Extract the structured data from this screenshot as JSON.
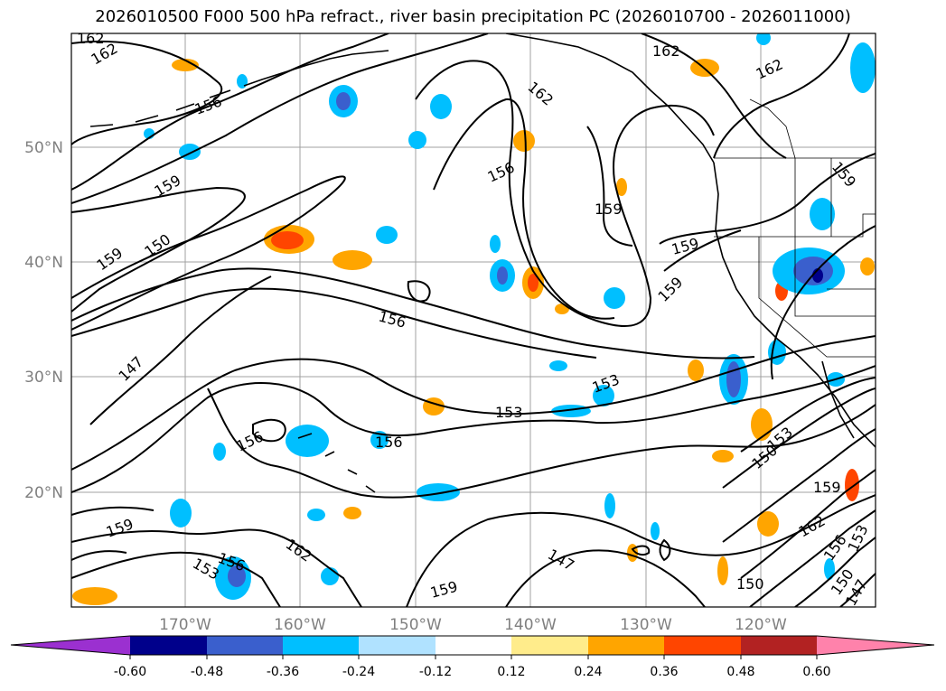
{
  "title": "2026010500 F000 500 hPa refract., river basin precipitation PC (2026010700 - 2026011000)",
  "map": {
    "lat_labels": [
      "50°N",
      "40°N",
      "30°N",
      "20°N"
    ],
    "lon_labels": [
      "170°W",
      "160°W",
      "150°W",
      "140°W",
      "130°W",
      "120°W"
    ],
    "contour_labels": [
      "162",
      "162",
      "156",
      "159",
      "159",
      "150",
      "147",
      "156",
      "156",
      "153",
      "153",
      "156",
      "156",
      "162",
      "159",
      "159",
      "162",
      "162",
      "159",
      "159",
      "150",
      "153",
      "162",
      "156",
      "153",
      "150",
      "147",
      "150",
      "147",
      "153",
      "156",
      "162",
      "159"
    ],
    "contour_color": "#000000",
    "grid_color": "#a0a0a0",
    "coast_color": "#000000"
  },
  "colorbar": {
    "ticks": [
      "-0.60",
      "-0.48",
      "-0.36",
      "-0.24",
      "-0.12",
      "0.12",
      "0.24",
      "0.36",
      "0.48",
      "0.60"
    ],
    "colors": [
      "#9b30d0",
      "#00008b",
      "#3a5fcd",
      "#00bfff",
      "#b0e2ff",
      "#ffffff",
      "#ffec8b",
      "#ffa500",
      "#ff4500",
      "#b22222",
      "#ff82ab"
    ]
  }
}
